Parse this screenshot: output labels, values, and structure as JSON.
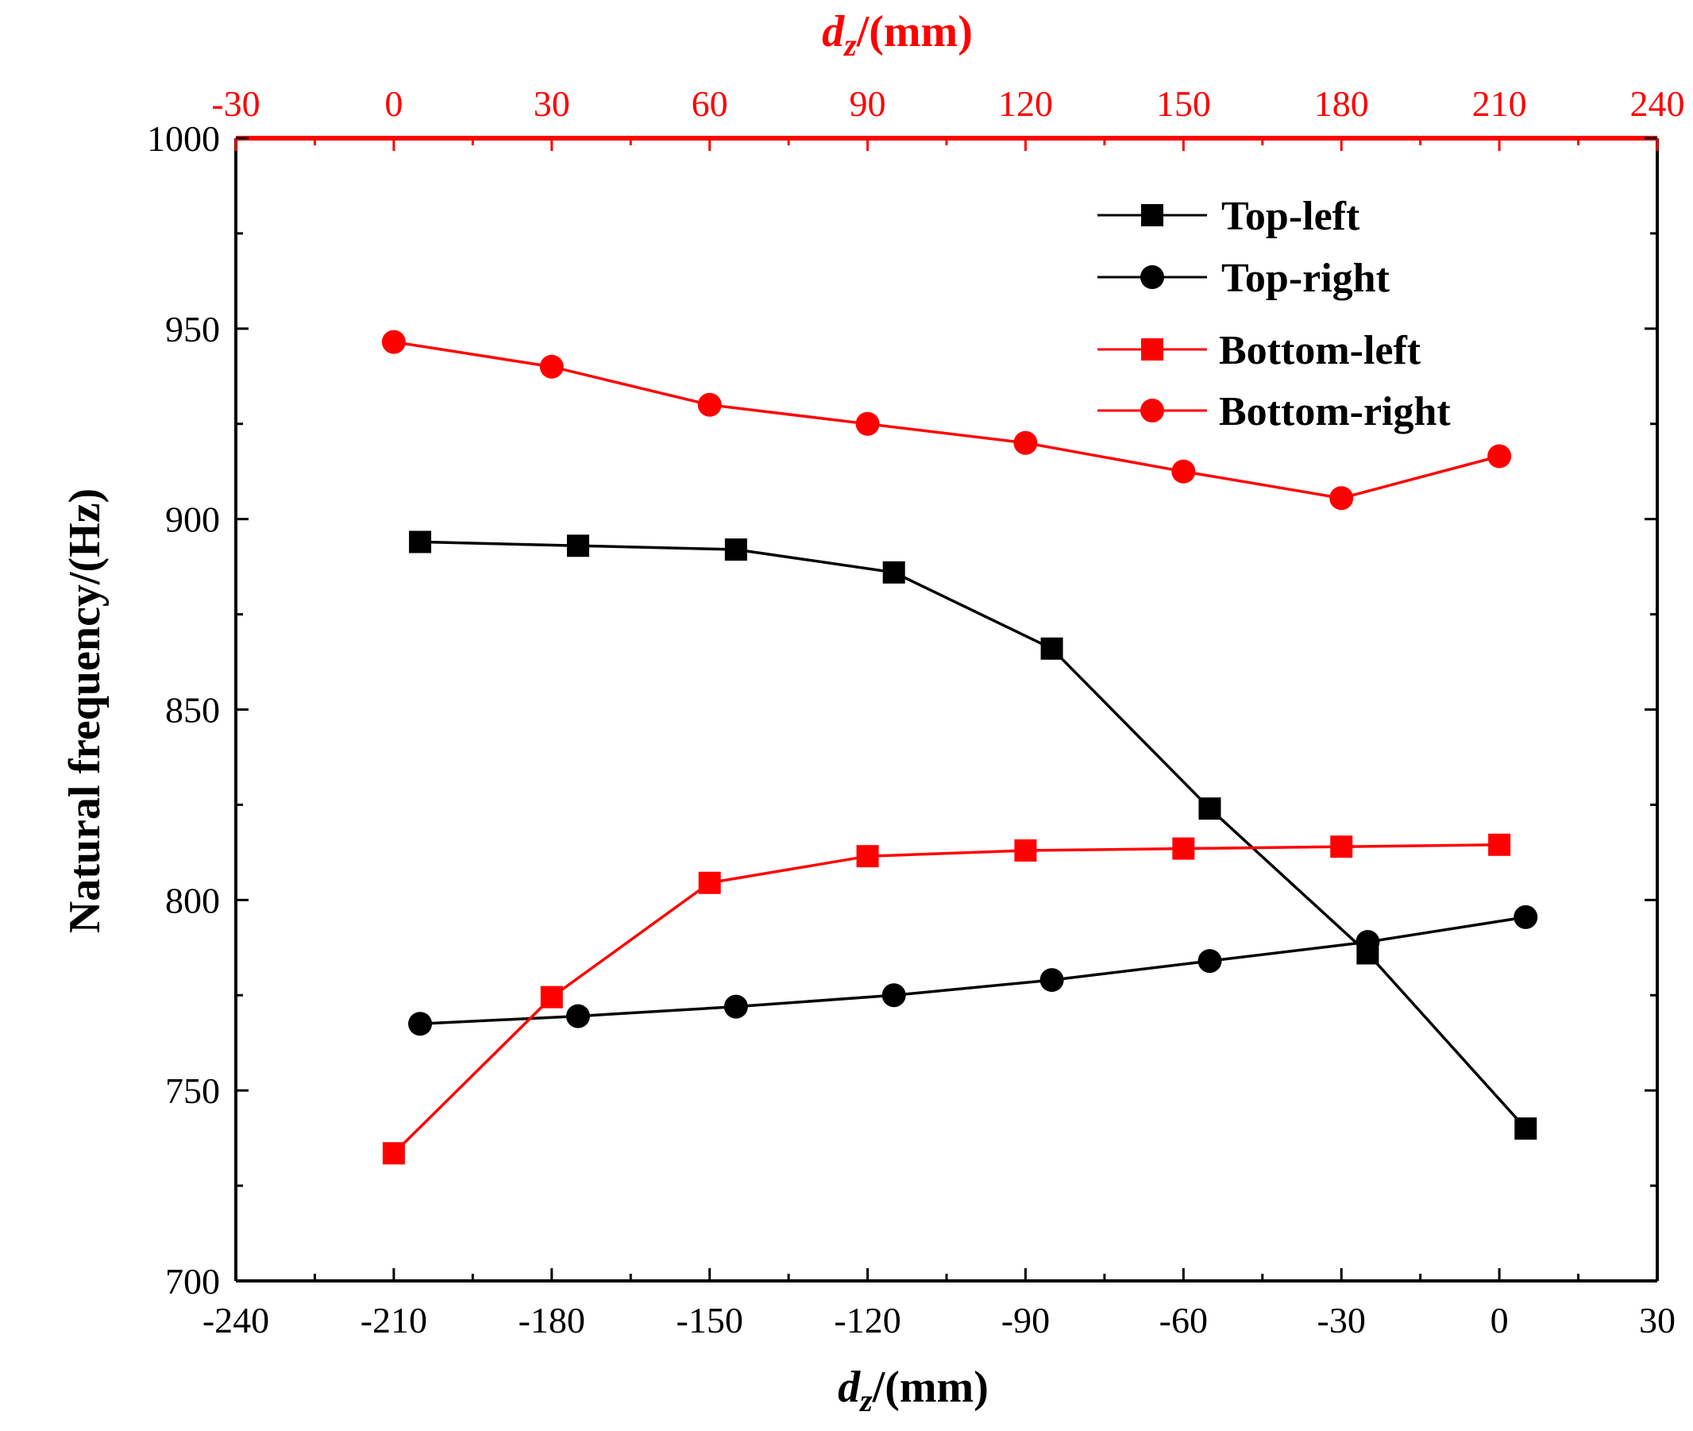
{
  "colors": {
    "black": "#000000",
    "red": "#ff0000",
    "background": "#ffffff"
  },
  "axes": {
    "bottom": {
      "label_main": "d",
      "label_sub": "z",
      "label_rest": "/(mm)",
      "min": -240,
      "max": 30,
      "ticks": [
        "-240",
        "-210",
        "-180",
        "-150",
        "-120",
        "-90",
        "-60",
        "-30",
        "0",
        "30"
      ]
    },
    "top": {
      "label_main": "d",
      "label_sub": "z",
      "label_rest": "/(mm)",
      "min": -30,
      "max": 240,
      "ticks": [
        "-30",
        "0",
        "30",
        "60",
        "90",
        "120",
        "150",
        "180",
        "210",
        "240"
      ]
    },
    "left": {
      "label": "Natural frequency/(Hz)",
      "min": 700,
      "max": 1000,
      "ticks": [
        "700",
        "750",
        "800",
        "850",
        "900",
        "950",
        "1000"
      ]
    }
  },
  "chart_data": {
    "type": "line",
    "grid": false,
    "legend_position": "top-right",
    "series": [
      {
        "name": "Top-left",
        "axis": "bottom",
        "color": "#000000",
        "marker": "square",
        "x": [
          -205,
          -175,
          -145,
          -115,
          -85,
          -55,
          -25,
          5
        ],
        "y": [
          894,
          893,
          892,
          886,
          866,
          824,
          786,
          740
        ]
      },
      {
        "name": "Top-right",
        "axis": "bottom",
        "color": "#000000",
        "marker": "circle",
        "x": [
          -205,
          -175,
          -145,
          -115,
          -85,
          -55,
          -25,
          5
        ],
        "y": [
          767.5,
          769.5,
          772,
          775,
          779,
          784,
          789,
          795.5
        ]
      },
      {
        "name": "Bottom-left",
        "axis": "bottom",
        "color": "#ff0000",
        "marker": "square",
        "x": [
          -210,
          -180,
          -150,
          -120,
          -90,
          -60,
          -30,
          0
        ],
        "y": [
          733.5,
          774.5,
          804.5,
          811.5,
          813,
          813.5,
          814,
          814.5
        ]
      },
      {
        "name": "Bottom-right",
        "axis": "top",
        "color": "#ff0000",
        "marker": "circle",
        "x": [
          0,
          30,
          60,
          90,
          120,
          150,
          180,
          210
        ],
        "y": [
          946.5,
          940,
          930,
          925,
          920,
          912.5,
          905.5,
          916.5
        ]
      }
    ]
  }
}
